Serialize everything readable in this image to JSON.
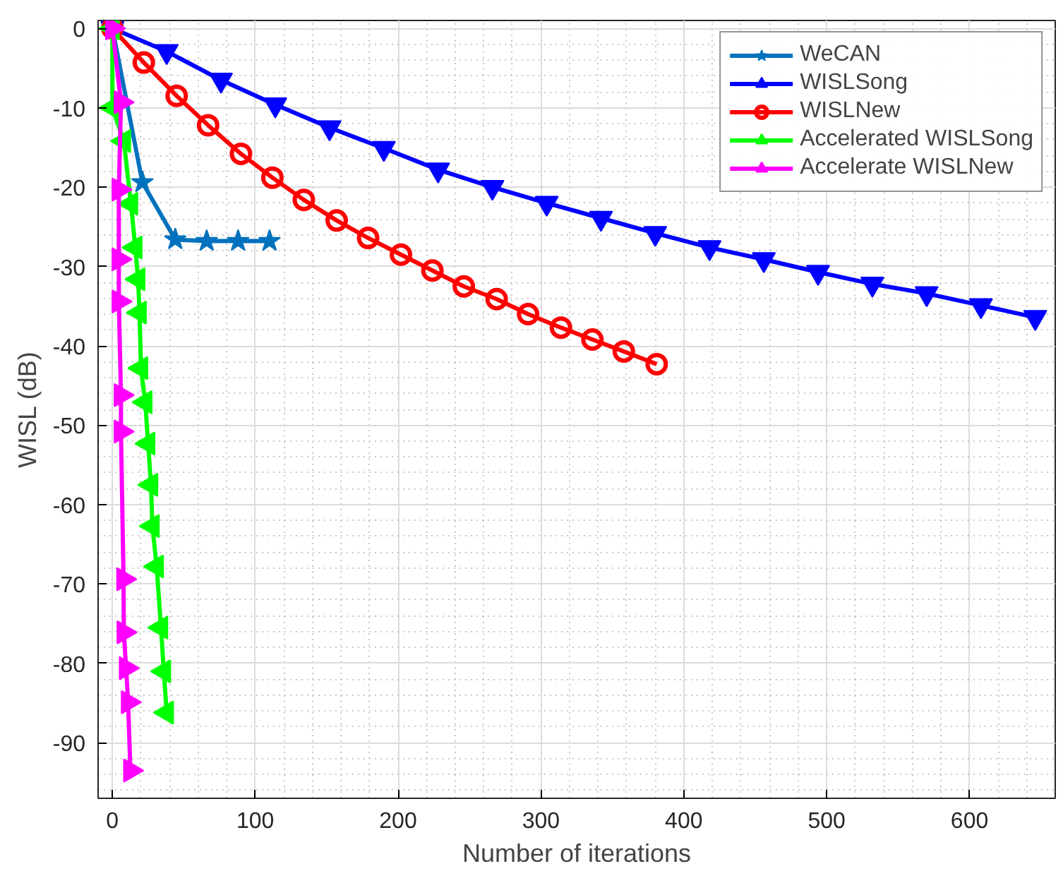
{
  "chart_data": {
    "type": "line",
    "xlabel": "Number of iterations",
    "ylabel": "WISL (dB)",
    "xlim": [
      -10,
      660
    ],
    "ylim": [
      -97,
      1
    ],
    "xticks": [
      0,
      100,
      200,
      300,
      400,
      500,
      600
    ],
    "yticks": [
      0,
      -10,
      -20,
      -30,
      -40,
      -50,
      -60,
      -70,
      -80,
      -90
    ],
    "grid": true,
    "legend": "top right",
    "line_style": "solid",
    "series": [
      {
        "name": "WeCAN",
        "color": "#0072bd",
        "marker": "star",
        "x": [
          0,
          21,
          44,
          66,
          88,
          110
        ],
        "values": [
          0,
          -19.4,
          -26.6,
          -26.8,
          -26.8,
          -26.8
        ]
      },
      {
        "name": "WISLSong",
        "color": "#0000ff",
        "marker": "triangle_down",
        "x": [
          0,
          38,
          76,
          114,
          152,
          190,
          228,
          266,
          304,
          342,
          380,
          418,
          456,
          494,
          532,
          570,
          608,
          646
        ],
        "values": [
          0,
          -2.9,
          -6.5,
          -9.6,
          -12.5,
          -15.1,
          -17.8,
          -20,
          -22,
          -23.9,
          -25.8,
          -27.6,
          -29.1,
          -30.7,
          -32.2,
          -33.4,
          -34.9,
          -36.4
        ]
      },
      {
        "name": "WISLNew",
        "color": "#ff0000",
        "marker": "circle",
        "x": [
          0,
          22,
          45,
          67,
          90,
          112,
          134,
          157,
          179,
          202,
          224,
          246,
          269,
          291,
          314,
          336,
          358,
          381
        ],
        "values": [
          0,
          -4.3,
          -8.5,
          -12.2,
          -15.8,
          -18.8,
          -21.6,
          -24.2,
          -26.4,
          -28.5,
          -30.5,
          -32.5,
          -34.1,
          -36,
          -37.7,
          -39.2,
          -40.7,
          -42.3
        ]
      },
      {
        "name": "Accelerated WISLSong",
        "color": "#00ff00",
        "marker": "triangle_left",
        "x": [
          0,
          0,
          8,
          13,
          16,
          18,
          19,
          20,
          23,
          25,
          27,
          28,
          31,
          34,
          36,
          38
        ],
        "values": [
          0,
          -10,
          -14.2,
          -22.1,
          -27.6,
          -31.6,
          -35.8,
          -42.8,
          -47.1,
          -52.3,
          -57.5,
          -62.7,
          -67.8,
          -75.5,
          -81,
          -86.2
        ]
      },
      {
        "name": "Accelerate WISLNew",
        "color": "#ff00ff",
        "marker": "triangle_right",
        "x": [
          0,
          6,
          4.5,
          4.5,
          4.5,
          6,
          6,
          7.8,
          8,
          9.6,
          11,
          12.6
        ],
        "values": [
          0,
          -9.3,
          -20.3,
          -29.1,
          -34.4,
          -46.2,
          -50.8,
          -69.4,
          -76.1,
          -80.6,
          -84.9,
          -93.5
        ]
      }
    ]
  }
}
